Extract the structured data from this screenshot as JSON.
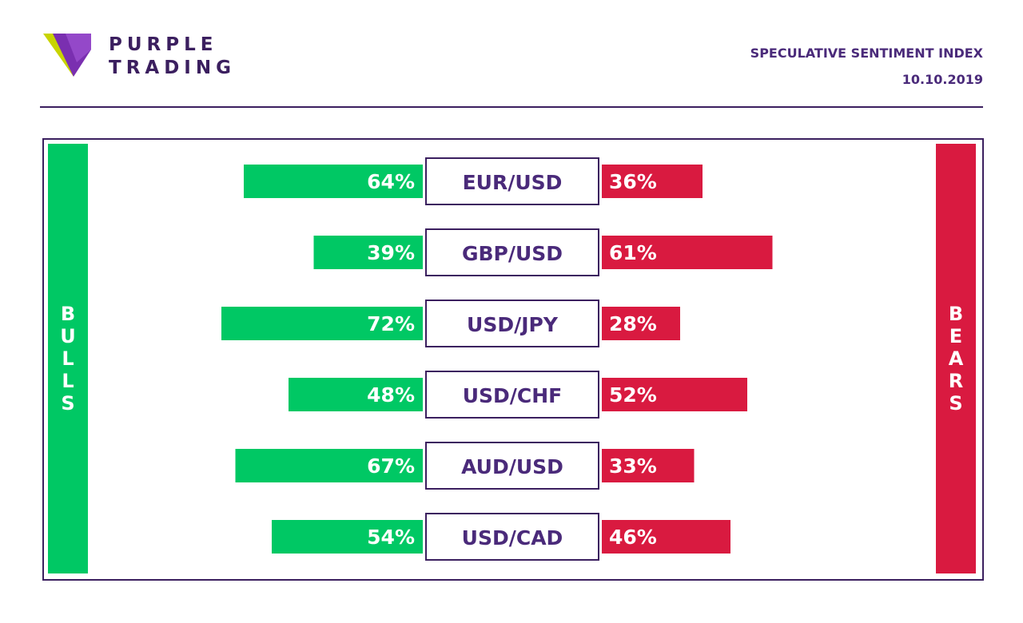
{
  "brand": {
    "line1": "PURPLE",
    "line2": "TRADING"
  },
  "header": {
    "title": "SPECULATIVE SENTIMENT INDEX",
    "date": "10.10.2019"
  },
  "colors": {
    "bulls": "#00c864",
    "bears": "#d91a40",
    "purple": "#3b1f5f",
    "label_text": "#4a2a7a"
  },
  "chart_data": {
    "type": "bar",
    "side_labels": {
      "left": "BULLS",
      "right": "BEARS"
    },
    "categories": [
      "EUR/USD",
      "GBP/USD",
      "USD/JPY",
      "USD/CHF",
      "AUD/USD",
      "USD/CAD"
    ],
    "series": [
      {
        "name": "BULLS",
        "values": [
          64,
          39,
          72,
          48,
          67,
          54
        ]
      },
      {
        "name": "BEARS",
        "values": [
          36,
          61,
          28,
          52,
          33,
          46
        ]
      }
    ],
    "unit": "%",
    "xlim": [
      0,
      100
    ],
    "grid": false
  }
}
